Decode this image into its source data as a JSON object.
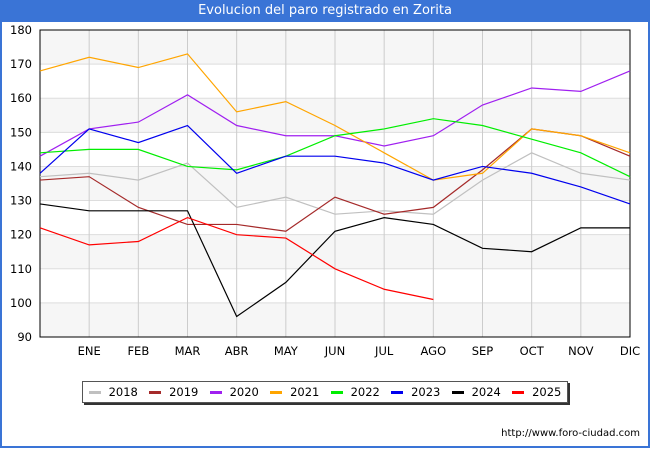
{
  "title": "Evolucion del paro registrado en Zorita",
  "source_label": "http://www.foro-ciudad.com",
  "chart_data": {
    "type": "line",
    "title": "Evolucion del paro registrado en Zorita",
    "xlabel": "",
    "ylabel": "",
    "categories": [
      "",
      "ENE",
      "FEB",
      "MAR",
      "ABR",
      "MAY",
      "JUN",
      "JUL",
      "AGO",
      "SEP",
      "OCT",
      "NOV",
      "DIC"
    ],
    "ylim": [
      90,
      180
    ],
    "yticks": [
      90,
      100,
      110,
      120,
      130,
      140,
      150,
      160,
      170,
      180
    ],
    "grid": true,
    "legend_position": "bottom",
    "series": [
      {
        "name": "2018",
        "color": "#c0c0c0",
        "values": [
          137,
          138,
          136,
          141,
          128,
          131,
          126,
          127,
          126,
          136,
          144,
          138,
          136
        ]
      },
      {
        "name": "2019",
        "color": "#a52a2a",
        "values": [
          136,
          137,
          128,
          123,
          123,
          121,
          131,
          126,
          128,
          139,
          151,
          149,
          143
        ]
      },
      {
        "name": "2020",
        "color": "#a020f0",
        "values": [
          143,
          151,
          153,
          161,
          152,
          149,
          149,
          146,
          149,
          158,
          163,
          162,
          168
        ]
      },
      {
        "name": "2021",
        "color": "#ffa500",
        "values": [
          168,
          172,
          169,
          173,
          156,
          159,
          152,
          144,
          136,
          138,
          151,
          149,
          144
        ]
      },
      {
        "name": "2022",
        "color": "#00ee00",
        "values": [
          144,
          145,
          145,
          140,
          139,
          143,
          149,
          151,
          154,
          152,
          148,
          144,
          137
        ]
      },
      {
        "name": "2023",
        "color": "#0000ee",
        "values": [
          138,
          151,
          147,
          152,
          138,
          143,
          143,
          141,
          136,
          140,
          138,
          134,
          129
        ]
      },
      {
        "name": "2024",
        "color": "#000000",
        "values": [
          129,
          127,
          127,
          127,
          96,
          106,
          121,
          125,
          123,
          116,
          115,
          122,
          122
        ]
      },
      {
        "name": "2025",
        "color": "#ff0000",
        "values": [
          122,
          117,
          118,
          125,
          120,
          119,
          110,
          104,
          101
        ]
      }
    ]
  }
}
